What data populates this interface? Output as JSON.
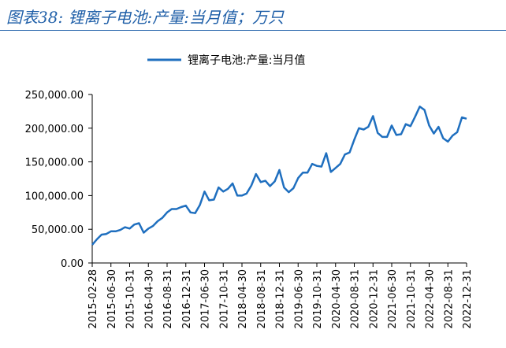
{
  "header": {
    "title": "图表38:  锂离子电池:产量:当月值；万只"
  },
  "chart_data": {
    "type": "line",
    "title": "图表38:  锂离子电池:产量:当月值；万只",
    "legend_position": "top-center",
    "series": [
      {
        "name": "锂离子电池:产量:当月值",
        "color": "#1f6fbf",
        "values": [
          27000,
          35000,
          42000,
          43000,
          47000,
          47000,
          49000,
          53000,
          51000,
          57000,
          59000,
          45000,
          51000,
          55000,
          62000,
          67000,
          75000,
          80000,
          80000,
          83000,
          85000,
          75000,
          74000,
          86000,
          106000,
          93000,
          94000,
          112000,
          106000,
          110000,
          118000,
          100000,
          100000,
          103000,
          115000,
          132000,
          120000,
          122000,
          114000,
          121000,
          138000,
          112000,
          105000,
          111000,
          126000,
          134000,
          134000,
          147000,
          144000,
          143000,
          163000,
          135000,
          141000,
          147000,
          161000,
          164000,
          183000,
          200000,
          198000,
          202000,
          218000,
          193000,
          187000,
          187000,
          204000,
          190000,
          191000,
          206000,
          203000,
          217000,
          232000,
          227000,
          204000,
          192000,
          202000,
          185000,
          180000,
          189000,
          194000,
          216000,
          214000
        ]
      }
    ],
    "x_start": "2015-02-28",
    "x_end": "2022-12-31",
    "x_tick_labels": [
      "2015-02-28",
      "2015-06-30",
      "2015-10-31",
      "2016-04-30",
      "2016-08-31",
      "2016-12-31",
      "2017-06-30",
      "2017-10-31",
      "2018-04-30",
      "2018-08-31",
      "2018-12-31",
      "2019-06-30",
      "2019-10-31",
      "2020-04-30",
      "2020-08-31",
      "2020-12-31",
      "2021-06-30",
      "2021-10-31",
      "2022-04-30",
      "2022-08-31",
      "2022-12-31"
    ],
    "y_tick_labels": [
      "250,000.00",
      "200,000.00",
      "150,000.00",
      "100,000.00",
      "50,000.00",
      "0.00"
    ],
    "ylim": [
      0,
      250000
    ],
    "grid": false
  }
}
